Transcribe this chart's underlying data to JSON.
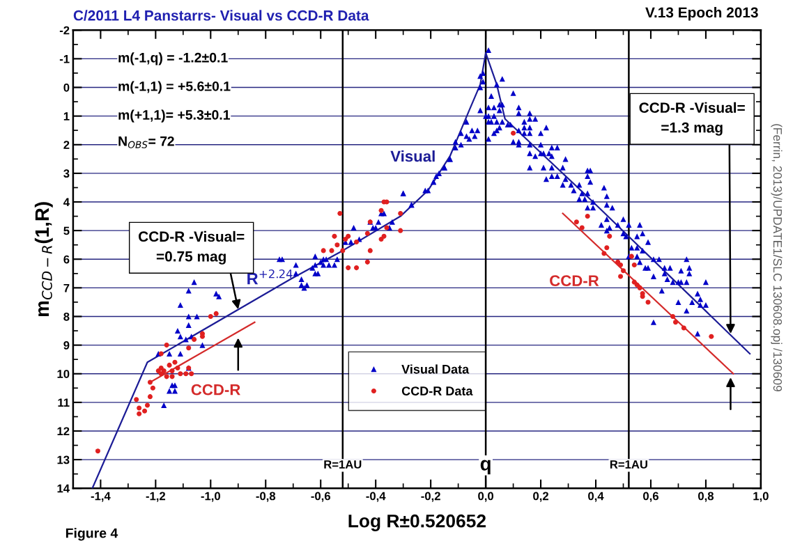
{
  "chart_data": {
    "type": "scatter",
    "title": "C/2011 L4 Panstarrs- Visual vs CCD-R Data",
    "xlabel": "Log R±0.520652",
    "ylabel": "m$_{CCD−R}$(1,R)",
    "xlim": [
      -1.5,
      1.0
    ],
    "ylim": [
      14,
      -2
    ],
    "xticks": [
      {
        "value": -1.4,
        "label": "-1,4"
      },
      {
        "value": -1.2,
        "label": "-1,2"
      },
      {
        "value": -1.0,
        "label": "-1,0"
      },
      {
        "value": -0.8,
        "label": "-0,8"
      },
      {
        "value": -0.6,
        "label": "-0,6"
      },
      {
        "value": -0.4,
        "label": "-0,4"
      },
      {
        "value": -0.2,
        "label": "-0,2"
      },
      {
        "value": 0.0,
        "label": "0,0"
      },
      {
        "value": 0.2,
        "label": "0,2"
      },
      {
        "value": 0.4,
        "label": "0,4"
      },
      {
        "value": 0.6,
        "label": "0,6"
      },
      {
        "value": 0.8,
        "label": "0,8"
      },
      {
        "value": 1.0,
        "label": "1,0"
      }
    ],
    "yticks": [
      -2,
      -1,
      0,
      1,
      2,
      3,
      4,
      5,
      6,
      7,
      8,
      9,
      10,
      11,
      12,
      13,
      14
    ],
    "grid": "y",
    "legend": "bottom",
    "series": [
      {
        "name": "Visual Data",
        "marker": "triangle",
        "color": "#0000c8",
        "x": [
          -1.06,
          -1.08,
          -0.98,
          -0.97,
          -1.11,
          -1.08,
          -1.05,
          -1.08,
          -1.12,
          -1.11,
          -1.09,
          -1.07,
          -1.03,
          -1.19,
          -1.15,
          -1.11,
          -1.08,
          -1.14,
          -1.13,
          -1.15,
          -1.13,
          -1.17,
          -0.75,
          -0.74,
          -0.69,
          -0.69,
          -0.67,
          -0.67,
          -0.66,
          -0.65,
          -0.63,
          -0.62,
          -0.62,
          -0.62,
          -0.61,
          -0.6,
          -0.59,
          -0.59,
          -0.58,
          -0.57,
          -0.55,
          -0.54,
          -0.51,
          -0.48,
          -0.49,
          -0.46,
          -0.42,
          -0.41,
          -0.4,
          -0.39,
          -0.38,
          -0.37,
          -0.35,
          -0.34,
          -0.3,
          -0.27,
          -0.21,
          -0.19,
          -0.18,
          -0.15,
          -0.13,
          -0.11,
          -0.09,
          0.01,
          -0.02,
          -0.01,
          -0.01,
          -0.02,
          0.06,
          0.04,
          0.1,
          0.02,
          -0.02,
          0.01,
          0.03,
          0.05,
          0.06,
          0.05,
          0.0,
          0.01,
          0.03,
          0.02,
          0.04,
          0.06,
          0.01,
          0.04,
          0.05,
          0.08,
          0.09,
          0.01,
          0.03,
          0.12,
          0.12,
          0.16,
          0.16,
          0.18,
          0.14,
          0.14,
          0.16,
          0.16,
          0.14,
          0.12,
          0.1,
          0.12,
          0.12,
          0.2,
          0.22,
          0.16,
          0.16,
          0.18,
          0.2,
          0.21,
          0.23,
          0.24,
          0.24,
          0.26,
          0.29,
          0.2,
          0.16,
          0.21,
          0.22,
          0.24,
          0.24,
          0.26,
          0.28,
          0.28,
          0.29,
          0.31,
          0.32,
          0.34,
          0.35,
          0.37,
          0.38,
          0.37,
          0.38,
          0.34,
          0.36,
          0.37,
          0.39,
          0.37,
          0.39,
          -0.07,
          -0.09,
          -0.11,
          -0.05,
          -0.07,
          -0.06,
          -0.04,
          -0.03,
          -0.13,
          -0.15,
          -0.17,
          -0.19,
          -0.22,
          -0.3,
          -0.27,
          0.43,
          0.44,
          0.44,
          0.46,
          0.44,
          0.42,
          0.44,
          0.45,
          0.48,
          0.5,
          0.52,
          0.5,
          0.51,
          0.55,
          0.56,
          0.57,
          0.55,
          0.53,
          0.57,
          0.59,
          0.52,
          0.55,
          0.56,
          0.58,
          0.59,
          0.61,
          0.63,
          0.61,
          0.65,
          0.67,
          0.65,
          0.66,
          0.68,
          0.7,
          0.71,
          0.73,
          0.74,
          0.74,
          0.71,
          0.73,
          0.8,
          0.64,
          0.7,
          0.73,
          0.75,
          0.77,
          0.78,
          0.78,
          0.8,
          0.61,
          0.77
        ],
        "values": [
          6.8,
          7.1,
          7.2,
          7.3,
          7.6,
          8.0,
          8.0,
          8.3,
          8.5,
          8.7,
          8.8,
          8.7,
          9.0,
          9.3,
          9.3,
          9.3,
          9.8,
          10.4,
          10.4,
          10.6,
          10.6,
          11.1,
          6.0,
          6.0,
          6.2,
          6.5,
          6.7,
          6.9,
          7.0,
          6.9,
          6.3,
          5.9,
          6.2,
          6.5,
          6.5,
          6.1,
          6.0,
          6.2,
          6.0,
          6.2,
          6.2,
          6.0,
          5.4,
          4.9,
          5.4,
          5.3,
          4.7,
          4.9,
          4.9,
          4.7,
          4.4,
          4.4,
          4.9,
          4.7,
          3.7,
          4.1,
          3.6,
          3.3,
          3.1,
          2.8,
          2.5,
          2.1,
          2.0,
          -1.3,
          -0.4,
          -0.5,
          -0.2,
          0.0,
          -0.3,
          -0.1,
          0.2,
          0.3,
          0.8,
          0.7,
          0.7,
          0.6,
          0.6,
          0.8,
          1.0,
          1.0,
          1.0,
          1.2,
          1.2,
          1.2,
          1.2,
          1.5,
          1.4,
          1.3,
          1.3,
          1.8,
          1.6,
          0.7,
          0.9,
          0.9,
          1.1,
          1.1,
          1.2,
          1.4,
          1.4,
          1.6,
          1.6,
          1.5,
          1.9,
          1.9,
          2.0,
          1.6,
          1.4,
          2.0,
          2.3,
          2.4,
          2.3,
          2.3,
          2.3,
          2.4,
          2.1,
          2.1,
          2.5,
          2.0,
          2.8,
          2.8,
          3.2,
          2.8,
          3.1,
          3.1,
          2.8,
          3.4,
          3.2,
          3.4,
          3.6,
          3.4,
          3.7,
          2.9,
          2.9,
          3.1,
          3.3,
          3.9,
          3.9,
          3.7,
          4.0,
          4.2,
          4.2,
          1.2,
          1.6,
          1.9,
          1.5,
          1.7,
          1.8,
          1.7,
          1.5,
          2.5,
          2.8,
          3.0,
          3.3,
          3.6,
          3.7,
          4.1,
          3.5,
          3.8,
          4.1,
          4.2,
          4.6,
          4.8,
          5.0,
          4.9,
          4.8,
          4.6,
          4.8,
          5.1,
          5.2,
          5.2,
          4.8,
          5.1,
          5.6,
          5.6,
          5.7,
          5.4,
          5.9,
          5.9,
          6.1,
          6.3,
          6.3,
          6.0,
          6.0,
          6.6,
          6.3,
          6.3,
          6.5,
          6.7,
          6.8,
          6.8,
          6.4,
          6.0,
          6.3,
          6.5,
          6.8,
          6.8,
          6.8,
          7.1,
          7.5,
          7.8,
          7.5,
          7.2,
          7.4,
          7.6,
          7.6,
          8.2,
          8.6
        ]
      },
      {
        "name": "CCD-R Data",
        "marker": "circle",
        "color": "#e02020",
        "x": [
          -1.41,
          -1.26,
          -1.26,
          -1.27,
          -1.24,
          -1.23,
          -1.22,
          -1.22,
          -1.21,
          -1.18,
          -1.16,
          -1.18,
          -1.17,
          -1.16,
          -1.14,
          -1.13,
          -1.12,
          -1.11,
          -1.14,
          -1.18,
          -1.15,
          -1.19,
          -1.09,
          -1.07,
          -1.08,
          -1.08,
          -1.06,
          -1.03,
          -1.03,
          -1.0,
          -0.98,
          -0.53,
          -0.55,
          -0.54,
          -0.56,
          -0.59,
          -0.52,
          -0.51,
          -0.5,
          -0.47,
          -0.5,
          -0.47,
          -0.43,
          -0.42,
          -0.43,
          -0.42,
          -0.38,
          -0.37,
          -0.36,
          -0.36,
          -0.38,
          -0.37,
          -0.31,
          -0.31,
          0.1,
          0.37,
          0.33,
          0.35,
          0.45,
          0.44,
          0.43,
          0.48,
          0.49,
          0.5,
          0.49,
          0.53,
          0.54,
          0.54,
          0.55,
          0.56,
          0.57,
          0.57,
          0.59,
          0.68,
          0.69,
          0.72,
          0.82
        ],
        "values": [
          12.7,
          11.4,
          11.2,
          10.9,
          11.3,
          11.1,
          10.8,
          10.3,
          10.5,
          9.3,
          9.0,
          9.8,
          9.9,
          10.1,
          9.9,
          9.6,
          9.8,
          10.0,
          10.1,
          10.0,
          9.7,
          9.9,
          10.0,
          10.0,
          9.8,
          9.1,
          8.8,
          8.6,
          8.7,
          8.0,
          7.9,
          4.4,
          5.2,
          5.5,
          5.7,
          5.7,
          5.7,
          5.3,
          5.2,
          5.4,
          6.3,
          6.3,
          6.1,
          5.7,
          5.1,
          4.7,
          4.3,
          4.0,
          4.0,
          4.9,
          5.3,
          5.2,
          4.4,
          5.0,
          1.6,
          4.5,
          4.7,
          4.9,
          5.2,
          5.6,
          5.8,
          6.1,
          6.2,
          6.4,
          6.6,
          5.9,
          6.2,
          6.8,
          6.9,
          7.0,
          7.2,
          7.3,
          7.5,
          8.0,
          8.2,
          8.4,
          8.7
        ]
      },
      {
        "name": "Visual",
        "type": "line",
        "marker": "none",
        "line_style": "solid",
        "color": "#1c1c96",
        "x": [
          -1.43,
          -1.23,
          -0.71,
          -0.52,
          -0.31,
          -0.21,
          -0.13,
          -0.06,
          -0.02,
          0.0,
          0.04,
          0.07,
          0.39,
          0.96
        ],
        "values": [
          14.0,
          9.6,
          6.7,
          5.7,
          4.5,
          3.6,
          2.4,
          0.8,
          -0.1,
          -1.2,
          -0.1,
          1.1,
          4.0,
          9.3
        ]
      },
      {
        "name": "CCD-R",
        "type": "line",
        "marker": "none",
        "line_style": "solid",
        "color": "#d42a2a",
        "x": [
          -1.22,
          -0.84
        ],
        "values": [
          10.3,
          8.2
        ]
      },
      {
        "name": "CCD-R",
        "type": "line",
        "marker": "none",
        "line_style": "solid",
        "color": "#d42a2a",
        "x": [
          0.28,
          0.9
        ],
        "values": [
          4.4,
          10.0
        ]
      }
    ],
    "ref_lines": [
      {
        "axis": "x",
        "value": -0.52,
        "color": "#000000"
      },
      {
        "axis": "x",
        "value": 0.0,
        "color": "#000000"
      },
      {
        "axis": "x",
        "value": 0.52,
        "color": "#000000"
      }
    ],
    "annotations": [
      "V.13 Epoch 2013",
      "m(-1,q) = -1.2±0.1",
      "m(-1,1) = +5.6±0.1",
      "m(+1,1)= +5.3±0.1",
      "N$_{OBS}$= 72",
      "Figure 4",
      "(Ferrin, 2013)/UPDATE1/SLC 130608.opj /130609",
      "R$^{+2.24}$",
      {
        "text": "R=1AU",
        "x": -0.52,
        "y": 13.2
      },
      {
        "text": "q",
        "x": 0.0,
        "y": 13.2
      },
      {
        "text": "R=1AU",
        "x": 0.52,
        "y": 13.2
      },
      {
        "text": "CCD-R -Visual=\n=0.75 mag",
        "x": -0.9,
        "y": 7.75
      },
      {
        "text": "CCD-R -Visual=\n=1.3 mag",
        "x": 0.89,
        "y": 8.6
      }
    ]
  }
}
